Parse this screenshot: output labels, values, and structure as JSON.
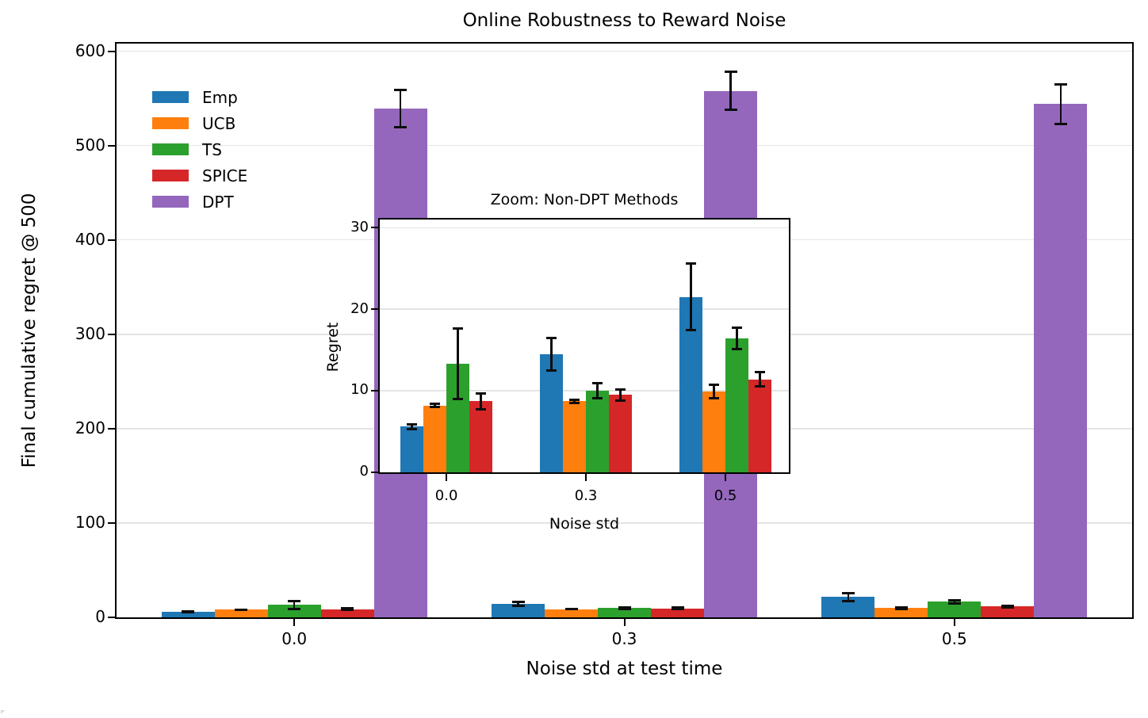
{
  "figure": {
    "background": "#ffffff",
    "axis_color": "#000000",
    "grid_color": "#e4e4e4",
    "error_bar_color": "#0d0d0d"
  },
  "legend": {
    "entries": [
      "Emp",
      "UCB",
      "TS",
      "SPICE",
      "DPT"
    ]
  },
  "chart_data": [
    {
      "id": "main",
      "type": "bar",
      "title": "Online Robustness to Reward Noise",
      "xlabel": "Noise std at test time",
      "ylabel": "Final cumulative regret @ 500",
      "categories": [
        "0.0",
        "0.3",
        "0.5"
      ],
      "yticks": [
        0,
        100,
        200,
        300,
        400,
        500,
        600
      ],
      "ylim": [
        0,
        608
      ],
      "grid": true,
      "legend_position": "upper left, frameless",
      "series": [
        {
          "name": "Emp",
          "color": "#1f77b4",
          "values": [
            5.6,
            14.5,
            21.5
          ],
          "errors": [
            0.3,
            2.0,
            4.1
          ]
        },
        {
          "name": "UCB",
          "color": "#ff7f0e",
          "values": [
            8.2,
            8.7,
            9.9
          ],
          "errors": [
            0.2,
            0.2,
            0.8
          ]
        },
        {
          "name": "TS",
          "color": "#2ca02c",
          "values": [
            13.3,
            10.0,
            16.4
          ],
          "errors": [
            4.3,
            0.9,
            1.3
          ]
        },
        {
          "name": "SPICE",
          "color": "#d62728",
          "values": [
            8.7,
            9.5,
            11.4
          ],
          "errors": [
            1.0,
            0.7,
            0.9
          ]
        },
        {
          "name": "DPT",
          "color": "#9467bd",
          "values": [
            539,
            558,
            544
          ],
          "errors": [
            20,
            20,
            21
          ]
        }
      ]
    },
    {
      "id": "inset",
      "type": "bar",
      "title": "Zoom: Non-DPT Methods",
      "xlabel": "Noise std",
      "ylabel": "Regret",
      "categories": [
        "0.0",
        "0.3",
        "0.5"
      ],
      "yticks": [
        0,
        10,
        20,
        30
      ],
      "ylim": [
        0,
        31
      ],
      "grid": true,
      "series": [
        {
          "name": "Emp",
          "color": "#1f77b4",
          "values": [
            5.6,
            14.5,
            21.5
          ],
          "errors": [
            0.3,
            2.0,
            4.1
          ]
        },
        {
          "name": "UCB",
          "color": "#ff7f0e",
          "values": [
            8.2,
            8.7,
            9.9
          ],
          "errors": [
            0.2,
            0.2,
            0.8
          ]
        },
        {
          "name": "TS",
          "color": "#2ca02c",
          "values": [
            13.3,
            10.0,
            16.4
          ],
          "errors": [
            4.3,
            0.9,
            1.3
          ]
        },
        {
          "name": "SPICE",
          "color": "#d62728",
          "values": [
            8.7,
            9.5,
            11.4
          ],
          "errors": [
            1.0,
            0.7,
            0.9
          ]
        }
      ]
    }
  ]
}
